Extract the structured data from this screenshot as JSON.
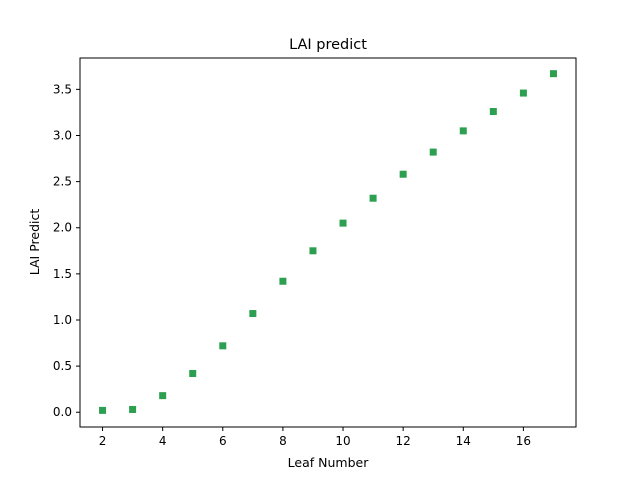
{
  "chart_data": {
    "type": "scatter",
    "title": "LAI predict",
    "xlabel": "Leaf Number",
    "ylabel": "LAI Predict",
    "xlim": [
      1.25,
      17.75
    ],
    "ylim": [
      -0.16,
      3.84
    ],
    "xticks": [
      2,
      4,
      6,
      8,
      10,
      12,
      14,
      16
    ],
    "xtick_labels": [
      "2",
      "4",
      "6",
      "8",
      "10",
      "12",
      "14",
      "16"
    ],
    "yticks": [
      0.0,
      0.5,
      1.0,
      1.5,
      2.0,
      2.5,
      3.0,
      3.5
    ],
    "ytick_labels": [
      "0.0",
      "0.5",
      "1.0",
      "1.5",
      "2.0",
      "2.5",
      "3.0",
      "3.5"
    ],
    "grid": false,
    "marker": "square",
    "color": "#2ca050",
    "x": [
      2,
      3,
      4,
      5,
      6,
      7,
      8,
      9,
      10,
      11,
      12,
      13,
      14,
      15,
      16,
      17
    ],
    "y": [
      0.02,
      0.03,
      0.18,
      0.42,
      0.72,
      1.07,
      1.42,
      1.75,
      2.05,
      2.32,
      2.58,
      2.82,
      3.05,
      3.26,
      3.46,
      3.67
    ]
  }
}
